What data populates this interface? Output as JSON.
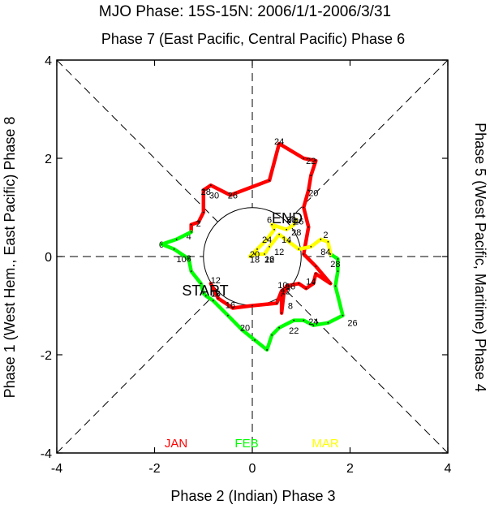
{
  "chart_data": {
    "type": "line",
    "title": "MJO Phase: 15S-15N: 2006/1/1-2006/3/31",
    "top_label": "Phase 7 (East Pacific, Central Pacific) Phase 6",
    "bottom_label": "Phase 2 (Indian) Phase 3",
    "left_label": "Phase 1 (West Hem., East Pacific) Phase 8",
    "right_label": "Phase 5 (West Pacific, Maritime) Phase 4",
    "xlim": [
      -4,
      4
    ],
    "ylim": [
      -4,
      4
    ],
    "x_ticks": [
      "-4",
      "-2",
      "0",
      "2",
      "4"
    ],
    "y_ticks": [
      "-4",
      "-2",
      "0",
      "2",
      "4"
    ],
    "start_label": "START",
    "end_label": "END",
    "series": [
      {
        "name": "JAN",
        "color": "#ff0000",
        "points": [
          [
            -0.85,
            -0.55
          ],
          [
            -0.7,
            -0.85
          ],
          [
            -0.4,
            -1.05
          ],
          [
            0,
            -1.0
          ],
          [
            0.5,
            -0.95
          ],
          [
            0.6,
            -0.7
          ],
          [
            0.75,
            -0.6
          ],
          [
            0.6,
            -0.8
          ],
          [
            0.6,
            -1.15
          ],
          [
            0.65,
            -0.7
          ],
          [
            0.7,
            -0.6
          ],
          [
            0.95,
            -0.55
          ],
          [
            1.1,
            -0.65
          ],
          [
            1.25,
            -0.55
          ],
          [
            1.3,
            -0.35
          ],
          [
            1.6,
            -0.55
          ],
          [
            1.3,
            -0.2
          ],
          [
            1.05,
            0.05
          ],
          [
            1.15,
            0.6
          ],
          [
            1.05,
            1.0
          ],
          [
            1.15,
            1.35
          ],
          [
            1.2,
            1.65
          ],
          [
            1.3,
            1.95
          ],
          [
            1.05,
            2.0
          ],
          [
            0.55,
            2.3
          ],
          [
            0.35,
            1.55
          ],
          [
            -0.45,
            1.25
          ],
          [
            -0.85,
            1.45
          ],
          [
            -1.0,
            1.35
          ],
          [
            -1.0,
            0.9
          ],
          [
            -1.1,
            0.7
          ],
          [
            -1.25,
            0.65
          ],
          [
            -1.25,
            0.5
          ]
        ],
        "labels": [
          {
            "t": "2",
            "x": -1.1,
            "y": 0.68
          },
          {
            "t": "4",
            "x": -1.3,
            "y": 0.41
          },
          {
            "t": "6",
            "x": -1.86,
            "y": 0.25
          },
          {
            "t": "8",
            "x": 0.78,
            "y": -1.0
          },
          {
            "t": "10",
            "x": 0.62,
            "y": -0.58
          },
          {
            "t": "12",
            "x": 0.68,
            "y": -0.7
          },
          {
            "t": "14",
            "x": 1.2,
            "y": -0.5
          },
          {
            "t": "16",
            "x": 0.78,
            "y": -0.6
          },
          {
            "t": "20",
            "x": 1.25,
            "y": 1.3
          },
          {
            "t": "22",
            "x": 1.2,
            "y": 1.95
          },
          {
            "t": "24",
            "x": 0.55,
            "y": 2.35
          },
          {
            "t": "26",
            "x": -0.4,
            "y": 1.25
          },
          {
            "t": "28",
            "x": -0.95,
            "y": 1.32
          },
          {
            "t": "30",
            "x": -0.78,
            "y": 1.25
          }
        ]
      },
      {
        "name": "FEB",
        "color": "#00ff00",
        "points": [
          [
            -1.25,
            0.5
          ],
          [
            -1.55,
            0.35
          ],
          [
            -1.85,
            0.25
          ],
          [
            -1.6,
            0.15
          ],
          [
            -1.3,
            -0.05
          ],
          [
            -1.25,
            -0.3
          ],
          [
            -1.05,
            -0.55
          ],
          [
            -1.0,
            -0.75
          ],
          [
            -0.95,
            -0.8
          ],
          [
            -0.8,
            -0.9
          ],
          [
            -0.5,
            -1.2
          ],
          [
            -0.2,
            -1.5
          ],
          [
            0.05,
            -1.7
          ],
          [
            0.3,
            -1.9
          ],
          [
            0.4,
            -1.6
          ],
          [
            0.55,
            -1.45
          ],
          [
            0.85,
            -1.3
          ],
          [
            1.05,
            -1.3
          ],
          [
            1.25,
            -1.4
          ],
          [
            1.55,
            -1.35
          ],
          [
            1.85,
            -1.2
          ],
          [
            1.7,
            -0.6
          ],
          [
            1.75,
            -0.3
          ],
          [
            1.75,
            -0.05
          ],
          [
            1.6,
            0.05
          ]
        ],
        "labels": [
          {
            "t": "10",
            "x": -1.45,
            "y": -0.05
          },
          {
            "t": "8",
            "x": -1.3,
            "y": -0.03
          },
          {
            "t": "12",
            "x": -0.75,
            "y": -0.48
          },
          {
            "t": "16",
            "x": -0.45,
            "y": -0.98
          },
          {
            "t": "18",
            "x": -0.75,
            "y": -0.75
          },
          {
            "t": "20",
            "x": -0.15,
            "y": -1.45
          },
          {
            "t": "22",
            "x": 0.85,
            "y": -1.5
          },
          {
            "t": "24",
            "x": 1.25,
            "y": -1.32
          },
          {
            "t": "26",
            "x": 2.05,
            "y": -1.35
          },
          {
            "t": "28",
            "x": 1.7,
            "y": -0.15
          }
        ]
      },
      {
        "name": "MAR",
        "color": "#ffff00",
        "points": [
          [
            1.6,
            0.05
          ],
          [
            1.55,
            0.3
          ],
          [
            1.4,
            0.35
          ],
          [
            1.2,
            0.2
          ],
          [
            0.95,
            0.15
          ],
          [
            0.75,
            0.3
          ],
          [
            0.55,
            0.45
          ],
          [
            0.35,
            0.2
          ],
          [
            0.25,
            0.05
          ],
          [
            0.05,
            0.05
          ],
          [
            -0.05,
            0.0
          ],
          [
            0.1,
            0.15
          ],
          [
            0.3,
            0.35
          ],
          [
            0.45,
            0.55
          ],
          [
            0.4,
            0.65
          ],
          [
            0.7,
            0.55
          ],
          [
            0.85,
            0.65
          ],
          [
            0.9,
            0.75
          ]
        ],
        "labels": [
          {
            "t": "2",
            "x": 1.5,
            "y": 0.45
          },
          {
            "t": "4",
            "x": 1.55,
            "y": 0.1
          },
          {
            "t": "8",
            "x": 1.45,
            "y": 0.1
          },
          {
            "t": "14",
            "x": 0.7,
            "y": 0.35
          },
          {
            "t": "12",
            "x": 0.55,
            "y": 0.1
          },
          {
            "t": "16",
            "x": 0.35,
            "y": -0.05
          },
          {
            "t": "18",
            "x": 0.05,
            "y": -0.06
          },
          {
            "t": "20",
            "x": 0.05,
            "y": 0.05
          },
          {
            "t": "22",
            "x": 0.35,
            "y": -0.06
          },
          {
            "t": "24",
            "x": 0.3,
            "y": 0.35
          },
          {
            "t": "26",
            "x": 0.95,
            "y": 0.72
          },
          {
            "t": "28",
            "x": 0.9,
            "y": 0.5
          },
          {
            "t": "30",
            "x": 0.8,
            "y": 0.75
          },
          {
            "t": "6",
            "x": 0.35,
            "y": 0.75
          }
        ]
      }
    ]
  }
}
